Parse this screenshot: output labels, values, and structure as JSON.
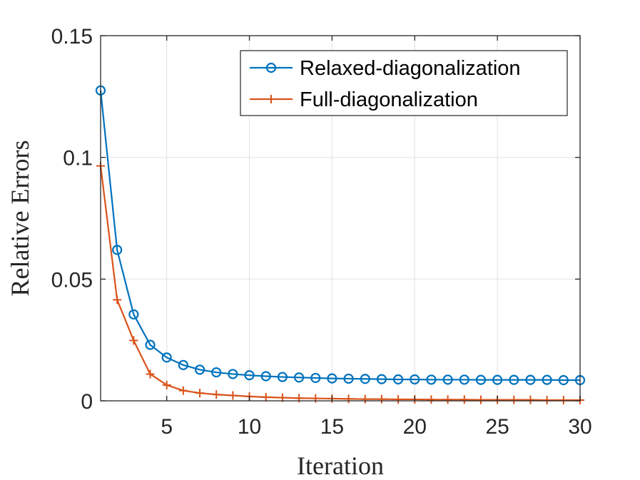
{
  "chart_data": {
    "type": "line",
    "title": "",
    "xlabel": "Iteration",
    "ylabel": "Relative Errors",
    "xlim": [
      1,
      30
    ],
    "ylim": [
      0,
      0.15
    ],
    "xticks": [
      5,
      10,
      15,
      20,
      25,
      30
    ],
    "xtick_labels": [
      "5",
      "10",
      "15",
      "20",
      "25",
      "30"
    ],
    "yticks": [
      0,
      0.05,
      0.1,
      0.15
    ],
    "ytick_labels": [
      "0",
      "0.05",
      "0.1",
      "0.15"
    ],
    "grid": true,
    "legend_position": "top-right",
    "x": [
      1,
      2,
      3,
      4,
      5,
      6,
      7,
      8,
      9,
      10,
      11,
      12,
      13,
      14,
      15,
      16,
      17,
      18,
      19,
      20,
      21,
      22,
      23,
      24,
      25,
      26,
      27,
      28,
      29,
      30
    ],
    "series": [
      {
        "name": "Relaxed-diagonalization",
        "color": "#0072BD",
        "marker": "circle",
        "values": [
          0.1275,
          0.062,
          0.0355,
          0.023,
          0.0178,
          0.0147,
          0.0128,
          0.0117,
          0.011,
          0.0105,
          0.0101,
          0.0098,
          0.0096,
          0.0094,
          0.0092,
          0.0091,
          0.009,
          0.0089,
          0.0088,
          0.0088,
          0.0087,
          0.0087,
          0.0087,
          0.0086,
          0.0086,
          0.0086,
          0.0086,
          0.0086,
          0.0085,
          0.0085
        ]
      },
      {
        "name": "Full-diagonalization",
        "color": "#D95319",
        "marker": "plus",
        "values": [
          0.0965,
          0.0415,
          0.0248,
          0.011,
          0.0065,
          0.0042,
          0.0032,
          0.0026,
          0.0022,
          0.0018,
          0.0015,
          0.0013,
          0.0011,
          0.001,
          0.0009,
          0.0008,
          0.0007,
          0.0007,
          0.0006,
          0.0006,
          0.0005,
          0.0005,
          0.0005,
          0.0004,
          0.0004,
          0.0004,
          0.0004,
          0.0003,
          0.0003,
          0.0003
        ]
      }
    ]
  }
}
